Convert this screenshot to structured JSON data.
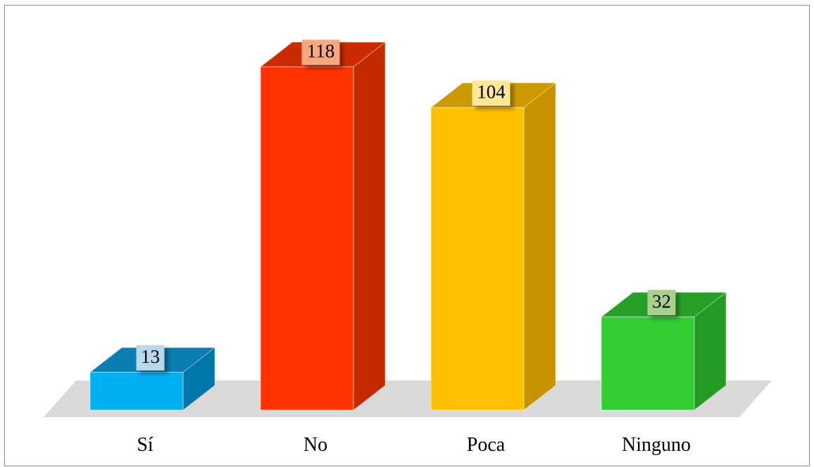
{
  "chart_data": {
    "type": "bar",
    "style": "3d-column",
    "categories": [
      "Sí",
      "No",
      "Poca",
      "Ninguno"
    ],
    "values": [
      13,
      118,
      104,
      32
    ],
    "colors": {
      "front": [
        "#00B0F0",
        "#FF3300",
        "#FFC000",
        "#33CC33"
      ],
      "side": [
        "#0077A8",
        "#C42A00",
        "#C79400",
        "#249A24"
      ],
      "top": [
        "#0A7EB0",
        "#CC2A00",
        "#CC9A00",
        "#28A028"
      ],
      "label_background": [
        "#B9D8EE",
        "#F6A980",
        "#FFE699",
        "#A9D18E"
      ],
      "floor": "#D9D9D9"
    },
    "title": "",
    "xlabel": "",
    "ylabel": "",
    "ylim": [
      0,
      118
    ],
    "grid": false,
    "legend": "none",
    "data_labels": true
  }
}
